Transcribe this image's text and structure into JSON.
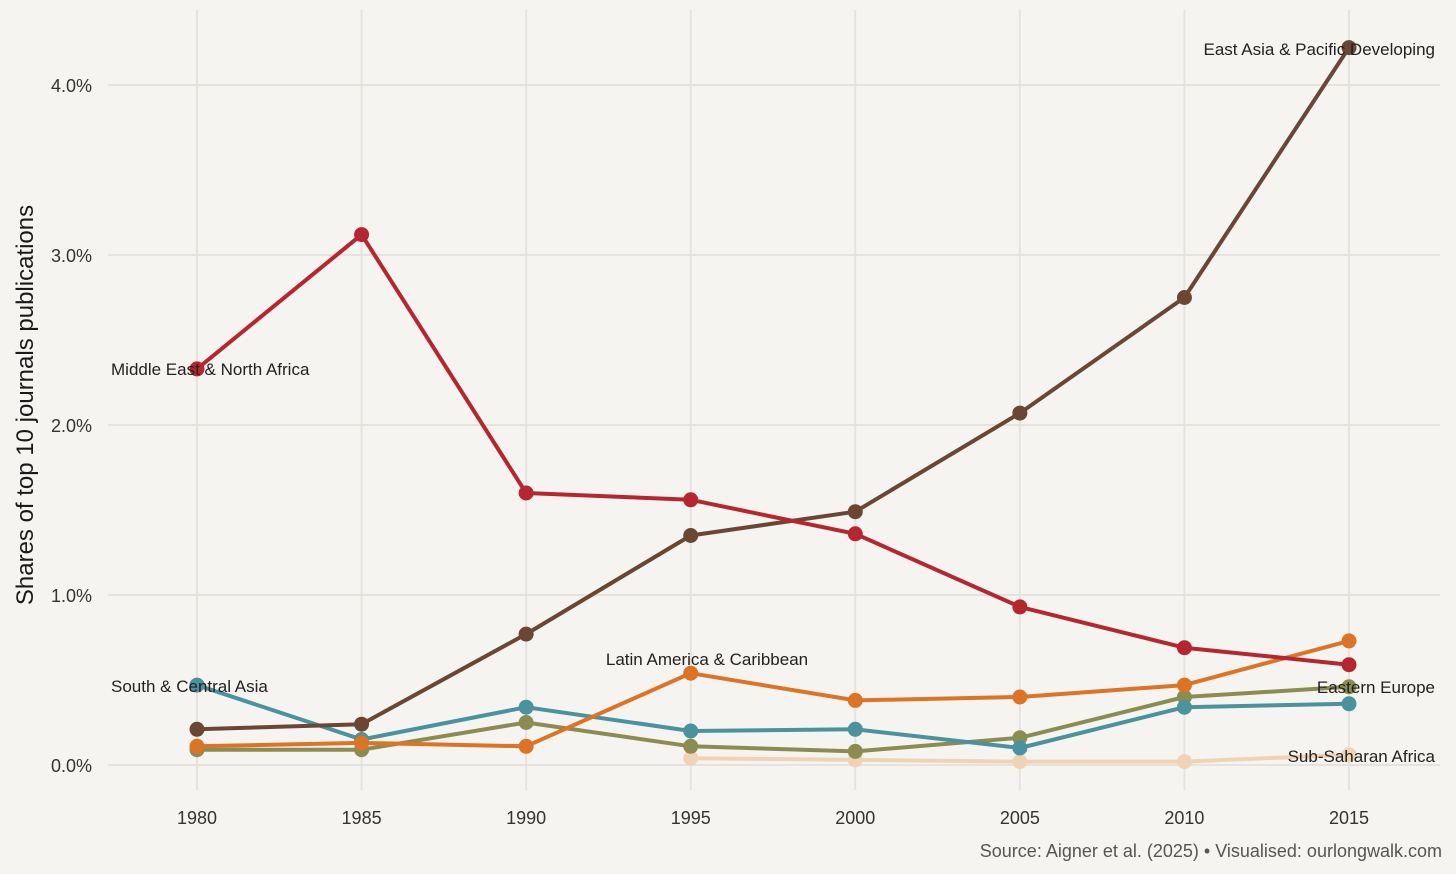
{
  "chart_data": {
    "type": "line",
    "title": "",
    "xlabel": "",
    "ylabel": "Shares of top 10 journals publications",
    "x": [
      1980,
      1985,
      1990,
      1995,
      2000,
      2005,
      2010,
      2015
    ],
    "x_tick_labels": [
      "1980",
      "1985",
      "1990",
      "1995",
      "2000",
      "2005",
      "2010",
      "2015"
    ],
    "ylim": [
      -0.0015,
      0.044
    ],
    "y_ticks": [
      0,
      0.01,
      0.02,
      0.03,
      0.04
    ],
    "y_tick_labels": [
      "0.0%",
      "1.0%",
      "2.0%",
      "3.0%",
      "4.0%"
    ],
    "grid": true,
    "legend": "direct labels",
    "series": [
      {
        "name": "Sub-Saharan Africa",
        "color": "#f0d3b5",
        "values": [
          null,
          null,
          null,
          0.0004,
          0.0003,
          0.0002,
          0.0002,
          0.0006
        ]
      },
      {
        "name": "Eastern Europe",
        "color": "#8b8c52",
        "values": [
          0.0009,
          0.0009,
          0.0025,
          0.0011,
          0.0008,
          0.0016,
          0.004,
          0.0046
        ]
      },
      {
        "name": "South & Central Asia",
        "color": "#4a929e",
        "values": [
          0.0047,
          0.0015,
          0.0034,
          0.002,
          0.0021,
          0.001,
          0.0034,
          0.0036
        ]
      },
      {
        "name": "Latin America & Caribbean",
        "color": "#dc7325",
        "values": [
          0.0011,
          0.0013,
          0.0011,
          0.0054,
          0.0038,
          0.004,
          0.0047,
          0.0073
        ]
      },
      {
        "name": "East Asia & Pacific Developing",
        "color": "#6b4632",
        "values": [
          0.0021,
          0.0024,
          0.0077,
          0.0135,
          0.0149,
          0.0207,
          0.0275,
          0.0422
        ]
      },
      {
        "name": "Middle East & North Africa",
        "color": "#b5262e",
        "values": [
          0.0233,
          0.0312,
          0.016,
          0.0156,
          0.0136,
          0.0093,
          0.0069,
          0.0059
        ]
      }
    ],
    "source": "Source: Aigner et al. (2025) • Visualised: ourlongwalk.com"
  }
}
